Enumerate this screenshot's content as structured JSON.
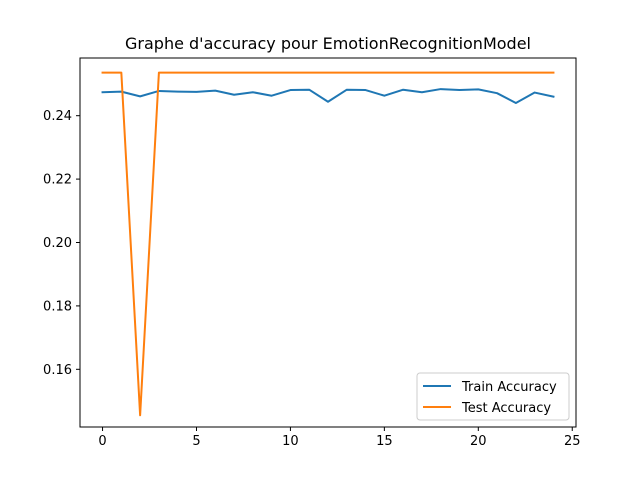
{
  "chart_data": {
    "type": "line",
    "title": "Graphe d'accuracy pour EmotionRecognitionModel",
    "xlabel": "",
    "ylabel": "",
    "xlim": [
      -1.2,
      25.2
    ],
    "ylim": [
      0.1418,
      0.2582
    ],
    "xticks": [
      0,
      5,
      10,
      15,
      20,
      25
    ],
    "yticks": [
      0.16,
      0.18,
      0.2,
      0.22,
      0.24
    ],
    "xtick_labels": [
      "0",
      "5",
      "10",
      "15",
      "20",
      "25"
    ],
    "ytick_labels": [
      "0.16",
      "0.18",
      "0.20",
      "0.22",
      "0.24"
    ],
    "grid": false,
    "legend_position": "lower-right",
    "x": [
      0,
      1,
      2,
      3,
      4,
      5,
      6,
      7,
      8,
      9,
      10,
      11,
      12,
      13,
      14,
      15,
      16,
      17,
      18,
      19,
      20,
      21,
      22,
      23,
      24
    ],
    "series": [
      {
        "name": "Train Accuracy",
        "color": "#1f77b4",
        "values": [
          0.2474,
          0.2476,
          0.2461,
          0.2478,
          0.2476,
          0.2475,
          0.2479,
          0.2466,
          0.2474,
          0.2463,
          0.2481,
          0.2482,
          0.2444,
          0.2482,
          0.2481,
          0.2463,
          0.2482,
          0.2474,
          0.2484,
          0.2481,
          0.2483,
          0.2471,
          0.244,
          0.2473,
          0.246
        ]
      },
      {
        "name": "Test Accuracy",
        "color": "#ff7f0e",
        "values": [
          0.2536,
          0.2536,
          0.1455,
          0.2536,
          0.2536,
          0.2536,
          0.2536,
          0.2536,
          0.2536,
          0.2536,
          0.2536,
          0.2536,
          0.2536,
          0.2536,
          0.2536,
          0.2536,
          0.2536,
          0.2536,
          0.2536,
          0.2536,
          0.2536,
          0.2536,
          0.2536,
          0.2536,
          0.2536
        ]
      }
    ]
  }
}
